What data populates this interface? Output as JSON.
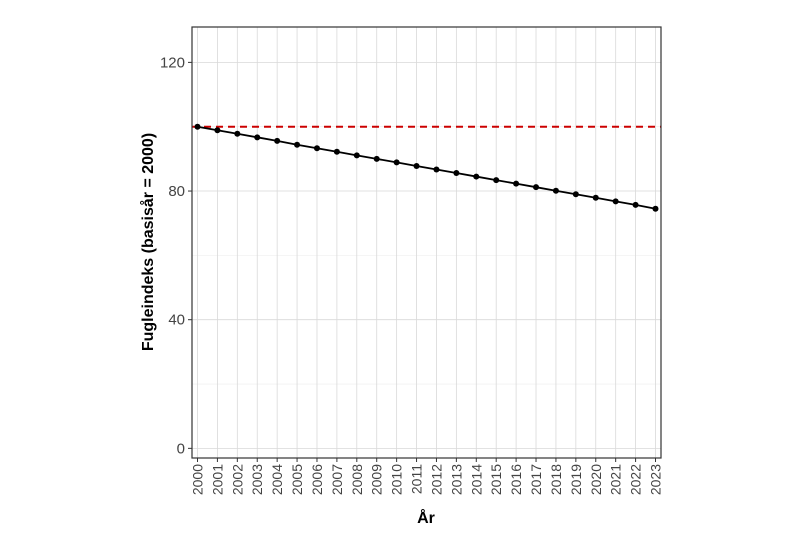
{
  "chart_data": {
    "type": "line",
    "title": "",
    "xlabel": "År",
    "ylabel": "Fugleindeks (basisår = 2000)",
    "ylim": [
      -3,
      131
    ],
    "y_ticks": [
      0,
      40,
      80,
      120
    ],
    "y_tick_labels": [
      "0",
      "40",
      "80",
      "120"
    ],
    "grid": true,
    "x": [
      "2000",
      "2001",
      "2002",
      "2003",
      "2004",
      "2005",
      "2006",
      "2007",
      "2008",
      "2009",
      "2010",
      "2011",
      "2012",
      "2013",
      "2014",
      "2015",
      "2016",
      "2017",
      "2018",
      "2019",
      "2020",
      "2021",
      "2022",
      "2023"
    ],
    "series": [
      {
        "values": [
          100,
          98.9,
          97.8,
          96.7,
          95.6,
          94.4,
          93.3,
          92.2,
          91.1,
          90.0,
          88.9,
          87.8,
          86.7,
          85.6,
          84.5,
          83.4,
          82.3,
          81.2,
          80.1,
          79.0,
          77.9,
          76.8,
          75.7,
          74.5
        ],
        "color": "#000000",
        "markers": true
      }
    ],
    "reference_line": {
      "y": 100,
      "color": "#cc0000",
      "style": "dashed"
    }
  }
}
